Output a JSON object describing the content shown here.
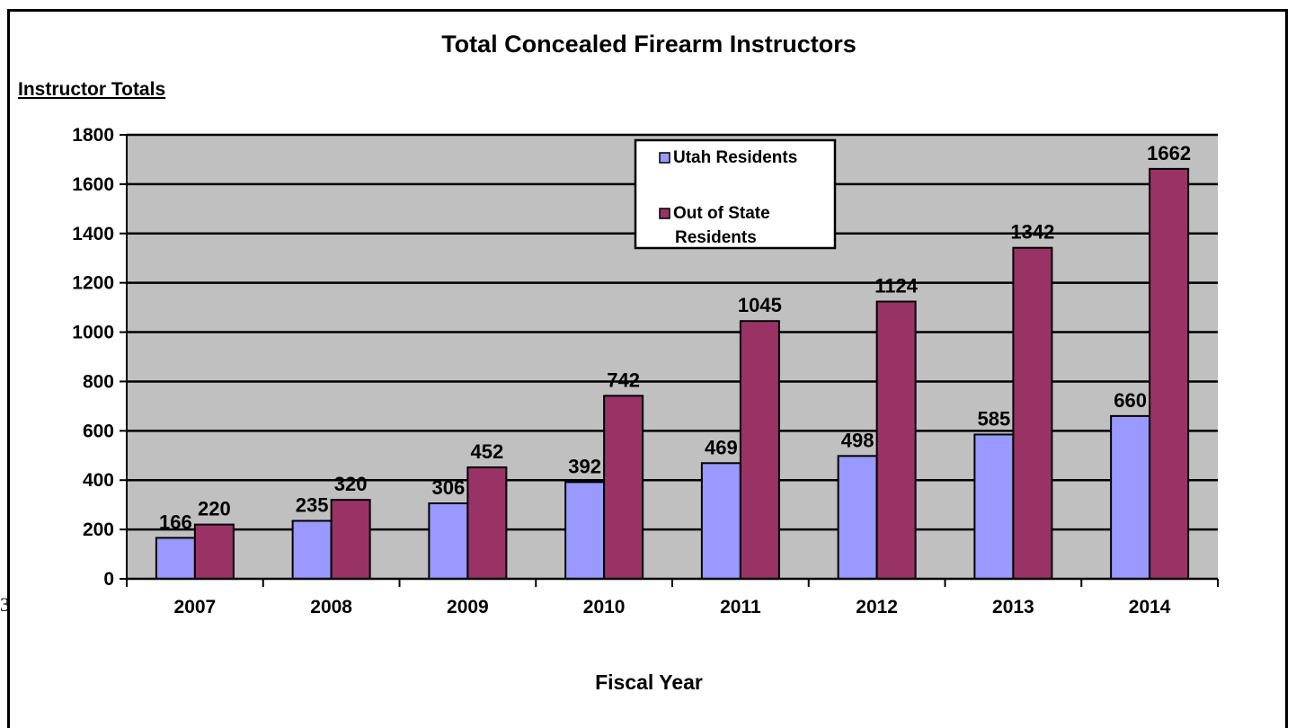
{
  "chart_data": {
    "type": "bar",
    "title": "Total Concealed Firearm Instructors",
    "ylabel": "Instructor Totals",
    "xlabel": "Fiscal Year",
    "categories": [
      "2007",
      "2008",
      "2009",
      "2010",
      "2011",
      "2012",
      "2013",
      "2014"
    ],
    "series": [
      {
        "name": "Utah Residents",
        "values": [
          166,
          235,
          306,
          392,
          469,
          498,
          585,
          660
        ],
        "color": "#9999ff"
      },
      {
        "name": "Out of State Residents",
        "values": [
          220,
          320,
          452,
          742,
          1045,
          1124,
          1342,
          1662
        ],
        "color": "#993366"
      }
    ],
    "legend_lines": [
      [
        "Utah Residents"
      ],
      [
        "Out of State",
        "Residents"
      ]
    ],
    "ylim": [
      0,
      1800
    ],
    "yticks": [
      0,
      200,
      400,
      600,
      800,
      1000,
      1200,
      1400,
      1600,
      1800
    ],
    "grid": true,
    "plot_background": "#c0c0c0",
    "legend_position": "top-center"
  },
  "stray_text": "3"
}
